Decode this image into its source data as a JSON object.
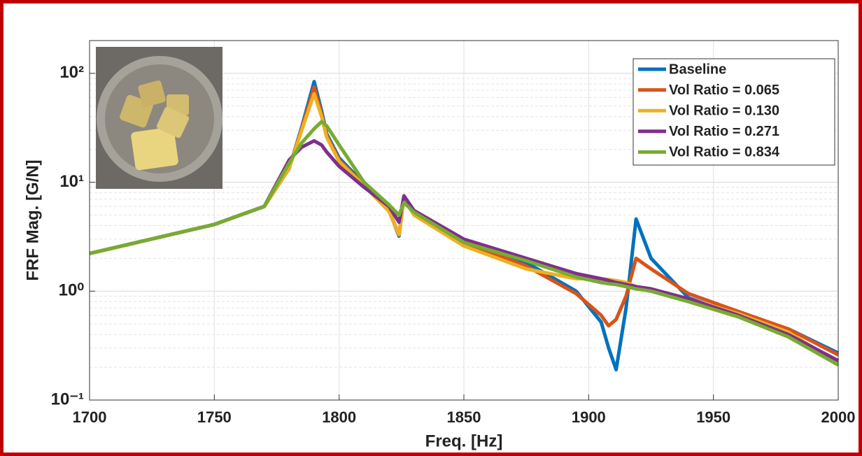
{
  "chart_data": {
    "type": "line",
    "xlabel": "Freq. [Hz]",
    "ylabel": "FRF Mag. [G/N]",
    "log_y": true,
    "grid": true,
    "legend": "upper right",
    "xlim": [
      1700,
      2000
    ],
    "xticks": [
      1700,
      1750,
      1800,
      1850,
      1900,
      1950,
      2000
    ],
    "ylim": [
      0.1,
      200
    ],
    "yticks": [
      {
        "value": 0.1,
        "label": "10⁻¹"
      },
      {
        "value": 1,
        "label": "10⁰"
      },
      {
        "value": 10,
        "label": "10¹"
      },
      {
        "value": 100,
        "label": "10²"
      }
    ],
    "x": [
      1700,
      1750,
      1770,
      1780,
      1785,
      1790,
      1793,
      1795,
      1800,
      1810,
      1820,
      1824,
      1826,
      1830,
      1850,
      1875,
      1895,
      1905,
      1908,
      1911,
      1915,
      1919,
      1925,
      1940,
      1960,
      1980,
      2000
    ],
    "series": [
      {
        "name": "Baseline",
        "color": "#0072BD",
        "values": [
          2.22,
          4.1,
          6.0,
          13.4,
          32,
          84,
          45,
          28,
          16.7,
          9.7,
          5.5,
          3.2,
          7.4,
          5.2,
          2.85,
          1.83,
          1.0,
          0.52,
          0.3,
          0.19,
          0.7,
          4.6,
          2.0,
          0.87,
          0.6,
          0.45,
          0.27
        ]
      },
      {
        "name": "Vol Ratio = 0.065",
        "color": "#D95319",
        "values": [
          2.22,
          4.1,
          6.0,
          13.4,
          31,
          75,
          42,
          27,
          16,
          9.5,
          5.5,
          3.3,
          7.3,
          5.1,
          2.8,
          1.7,
          0.95,
          0.6,
          0.48,
          0.55,
          0.9,
          2.0,
          1.6,
          0.95,
          0.65,
          0.45,
          0.26
        ]
      },
      {
        "name": "Vol Ratio = 0.130",
        "color": "#EDB120",
        "values": [
          2.22,
          4.1,
          6.0,
          13.5,
          30,
          65,
          40,
          26,
          15.5,
          9.3,
          5.4,
          3.3,
          7.0,
          5.0,
          2.6,
          1.6,
          1.3,
          1.3,
          1.28,
          1.25,
          1.2,
          1.1,
          1.0,
          0.85,
          0.62,
          0.42,
          0.22
        ]
      },
      {
        "name": "Vol Ratio = 0.271",
        "color": "#7E2F8E",
        "values": [
          2.22,
          4.1,
          6.0,
          16,
          21,
          24,
          22,
          19,
          14,
          9,
          6,
          4.3,
          7.5,
          5.5,
          3.0,
          2.0,
          1.45,
          1.3,
          1.25,
          1.2,
          1.15,
          1.1,
          1.05,
          0.85,
          0.6,
          0.4,
          0.23
        ]
      },
      {
        "name": "Vol Ratio = 0.834",
        "color": "#77AC30",
        "values": [
          2.22,
          4.1,
          6.0,
          15,
          23,
          31,
          36,
          33,
          22,
          10,
          6.2,
          5.0,
          6.5,
          5.3,
          2.8,
          1.9,
          1.35,
          1.2,
          1.17,
          1.15,
          1.1,
          1.05,
          1.0,
          0.8,
          0.58,
          0.38,
          0.21
        ]
      }
    ]
  }
}
